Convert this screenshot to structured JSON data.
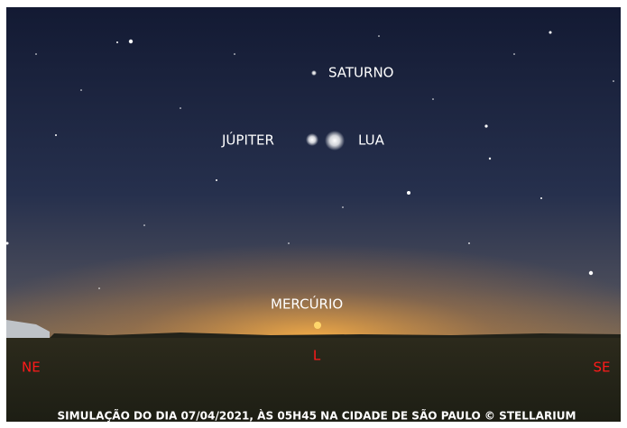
{
  "sky_labels": {
    "saturn": "SATURNO",
    "jupiter": "JÚPITER",
    "moon": "LUA",
    "mercury": "MERCÚRIO"
  },
  "cardinal_points": {
    "northeast": "NE",
    "east": "L",
    "southeast": "SE"
  },
  "caption": "SIMULAÇÃO DO DIA 07/04/2021, ÀS 05H45 NA CIDADE DE SÃO PAULO © STELLARIUM"
}
